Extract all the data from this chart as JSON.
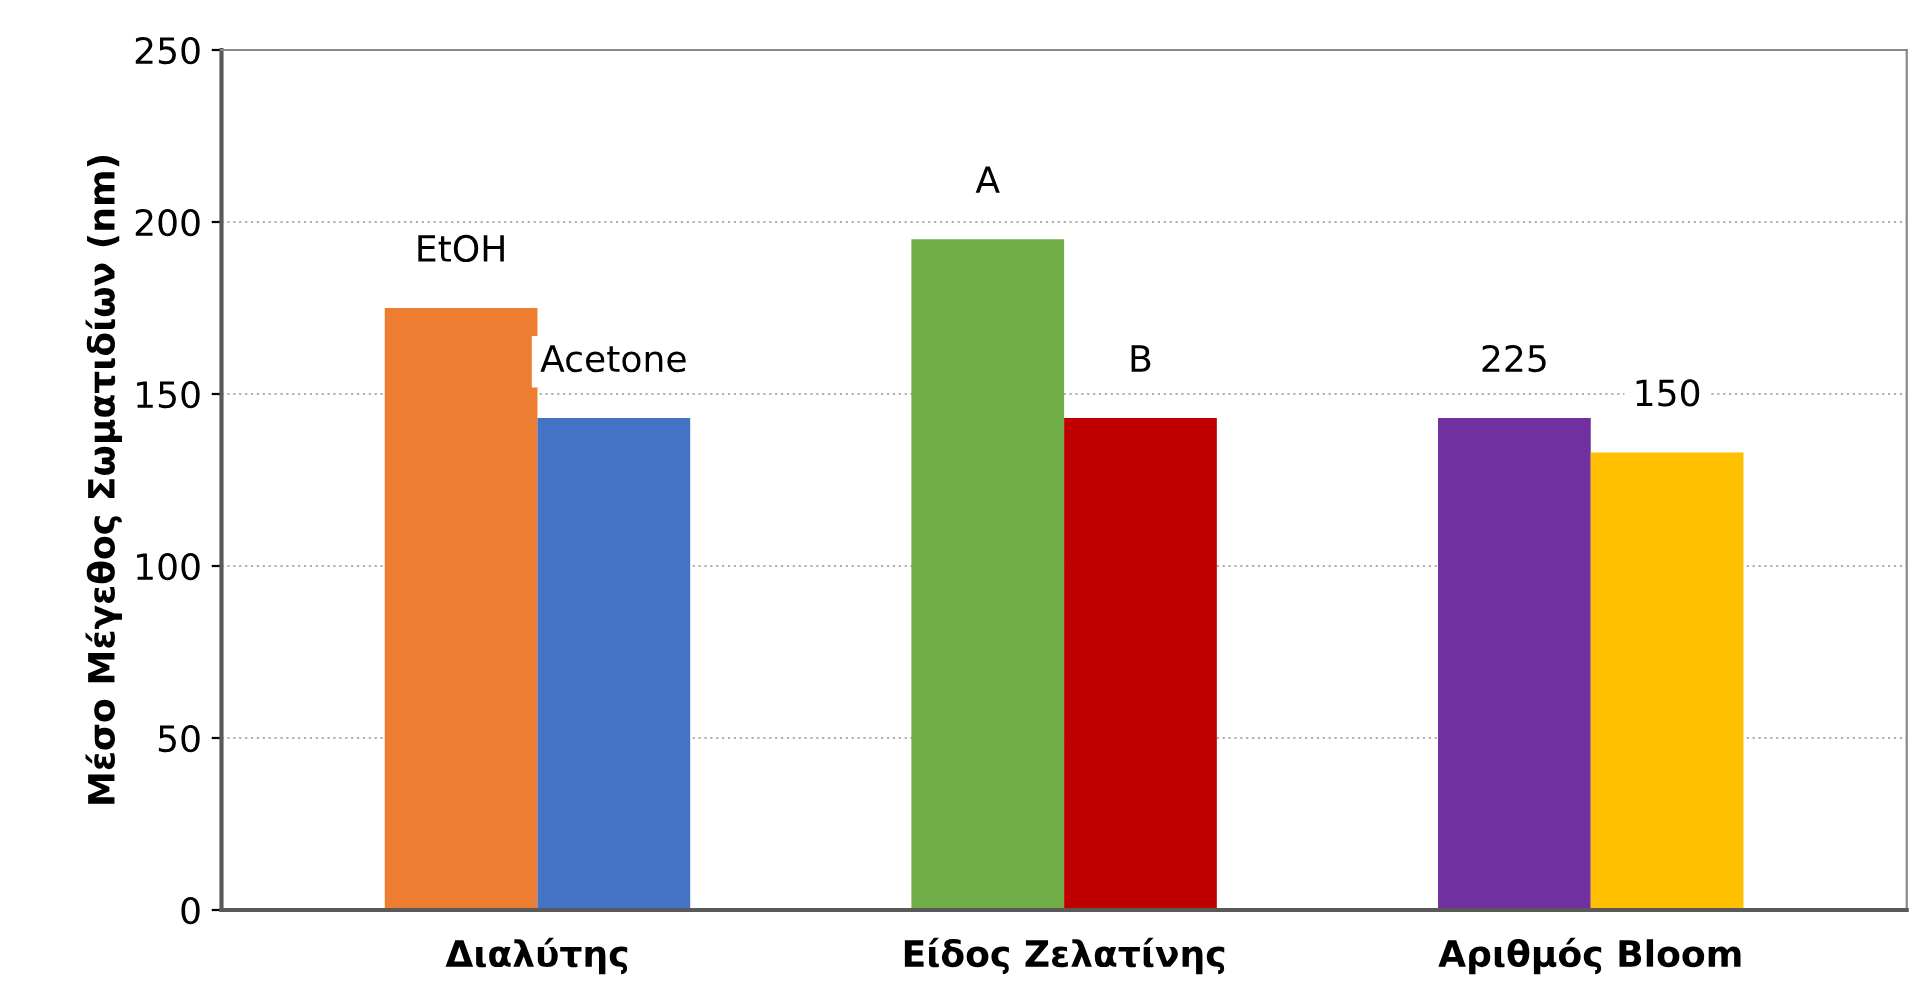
{
  "chart_data": {
    "type": "bar",
    "ylabel": "Μέσο Μέγεθος Σωματιδίων (nm)",
    "categories": [
      "Διαλύτης",
      "Είδος Ζελατίνης",
      "Αριθμός Bloom"
    ],
    "series": [
      {
        "colors": [
          "#ed7d31",
          "#70ad47",
          "#7030a0"
        ],
        "values": [
          175,
          195,
          143
        ]
      },
      {
        "colors": [
          "#4472c4",
          "#c00000",
          "#ffc000"
        ],
        "values": [
          143,
          143,
          133
        ]
      }
    ],
    "ylim": [
      0,
      250
    ],
    "yticks": [
      0,
      50,
      100,
      150,
      200,
      250
    ],
    "grid": "y",
    "legend": false,
    "annotations": [
      {
        "text": "EtOH",
        "x": "Διαλύτης",
        "y": 175
      },
      {
        "text": "Acetone",
        "x": "Διαλύτης",
        "y": 143
      },
      {
        "text": "A",
        "x": "Είδος Ζελατίνης",
        "y": 195
      },
      {
        "text": "B",
        "x": "Είδος Ζελατίνης",
        "y": 143
      },
      {
        "text": "225",
        "x": "Αριθμός Bloom",
        "y": 143
      },
      {
        "text": "150",
        "x": "Αριθμός Bloom",
        "y": 133
      }
    ]
  }
}
